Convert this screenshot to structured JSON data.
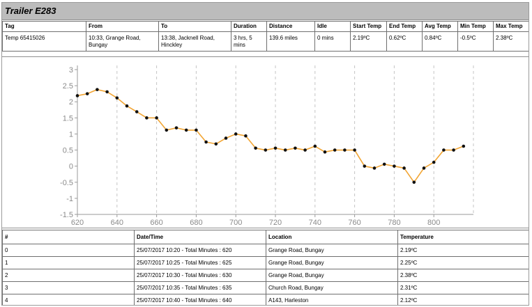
{
  "title": "Trailer E283",
  "summary": {
    "headers": [
      "Tag",
      "From",
      "To",
      "Duration",
      "Distance",
      "Idle",
      "Start Temp",
      "End Temp",
      "Avg Temp",
      "Min Temp",
      "Max Temp"
    ],
    "row": [
      "Temp 65415026",
      "10:33, Grange Road, Bungay",
      "13:38, Jacknell Road, Hinckley",
      "3 hrs, 5 mins",
      "139.6 miles",
      "0 mins",
      "2.19ºC",
      "0.62ºC",
      "0.84ºC",
      "-0.5ºC",
      "2.38ºC"
    ]
  },
  "chart_data": {
    "type": "line",
    "x_ticks": [
      "620",
      "640",
      "660",
      "680",
      "700",
      "720",
      "740",
      "760",
      "780",
      "800"
    ],
    "y_ticks": [
      "3",
      "2.5",
      "2",
      "1.5",
      "1",
      "0.5",
      "0",
      "-0.5",
      "-1",
      "-1.5"
    ],
    "xlim": [
      620,
      820
    ],
    "ylim": [
      -1.5,
      3
    ],
    "grid": "vertical dashed",
    "line_color": "#f2a533",
    "marker_color": "#111111",
    "x": [
      620,
      625,
      630,
      635,
      640,
      645,
      650,
      655,
      660,
      665,
      670,
      675,
      680,
      685,
      690,
      695,
      700,
      705,
      710,
      715,
      720,
      725,
      730,
      735,
      740,
      745,
      750,
      755,
      760,
      765,
      770,
      775,
      780,
      785,
      790,
      795,
      800,
      805,
      810,
      815
    ],
    "values": [
      2.19,
      2.25,
      2.38,
      2.31,
      2.12,
      1.87,
      1.69,
      1.5,
      1.5,
      1.12,
      1.19,
      1.12,
      1.12,
      0.75,
      0.69,
      0.87,
      1.0,
      0.94,
      0.56,
      0.5,
      0.56,
      0.5,
      0.56,
      0.5,
      0.62,
      0.44,
      0.5,
      0.5,
      0.5,
      0.0,
      -0.06,
      0.06,
      0.0,
      -0.06,
      -0.5,
      -0.06,
      0.12,
      0.5,
      0.5,
      0.62
    ]
  },
  "readings": {
    "headers": [
      "#",
      "Date/Time",
      "Location",
      "Temperature"
    ],
    "rows": [
      [
        "0",
        "25/07/2017 10:20 - Total Minutes : 620",
        "Grange Road, Bungay",
        "2.19ºC"
      ],
      [
        "1",
        "25/07/2017 10:25 - Total Minutes : 625",
        "Grange Road, Bungay",
        "2.25ºC"
      ],
      [
        "2",
        "25/07/2017 10:30 - Total Minutes : 630",
        "Grange Road, Bungay",
        "2.38ºC"
      ],
      [
        "3",
        "25/07/2017 10:35 - Total Minutes : 635",
        "Church Road, Bungay",
        "2.31ºC"
      ],
      [
        "4",
        "25/07/2017 10:40 - Total Minutes : 640",
        "A143, Harleston",
        "2.12ºC"
      ]
    ]
  }
}
